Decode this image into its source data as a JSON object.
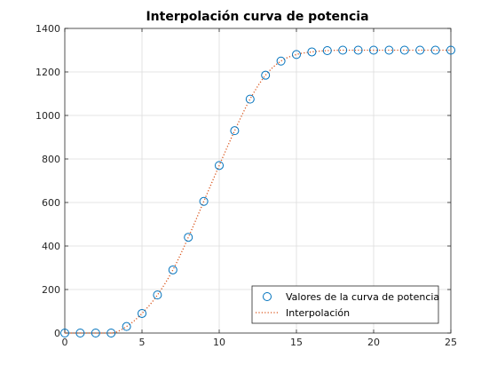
{
  "chart_data": {
    "type": "line",
    "title": "Interpolación curva de potencia",
    "xlabel": "",
    "ylabel": "",
    "xlim": [
      0,
      25
    ],
    "ylim": [
      0,
      1400
    ],
    "xticks": [
      0,
      5,
      10,
      15,
      20,
      25
    ],
    "yticks": [
      0,
      200,
      400,
      600,
      800,
      1000,
      1200,
      1400
    ],
    "grid": true,
    "legend_position": "bottom-right",
    "series": [
      {
        "name": "Valores de la curva de potencia",
        "style": "markers",
        "color": "#0072BD",
        "x": [
          0,
          1,
          2,
          3,
          4,
          5,
          6,
          7,
          8,
          9,
          10,
          11,
          12,
          13,
          14,
          15,
          16,
          17,
          18,
          19,
          20,
          21,
          22,
          23,
          24,
          25
        ],
        "values": [
          0,
          0,
          0,
          0,
          30,
          90,
          175,
          290,
          440,
          605,
          770,
          930,
          1075,
          1185,
          1250,
          1280,
          1292,
          1298,
          1300,
          1300,
          1300,
          1300,
          1300,
          1300,
          1300,
          1300
        ]
      },
      {
        "name": "Interpolación",
        "style": "dotted-line",
        "color": "#D95319",
        "x": [
          0,
          1,
          2,
          3,
          4,
          5,
          6,
          7,
          8,
          9,
          10,
          11,
          12,
          13,
          14,
          15,
          16,
          17,
          18,
          19,
          20,
          21,
          22,
          23,
          24,
          25
        ],
        "values": [
          0,
          0,
          0,
          0,
          30,
          90,
          175,
          290,
          440,
          605,
          770,
          930,
          1075,
          1185,
          1250,
          1280,
          1292,
          1298,
          1300,
          1300,
          1300,
          1300,
          1300,
          1300,
          1300,
          1300
        ]
      }
    ]
  }
}
